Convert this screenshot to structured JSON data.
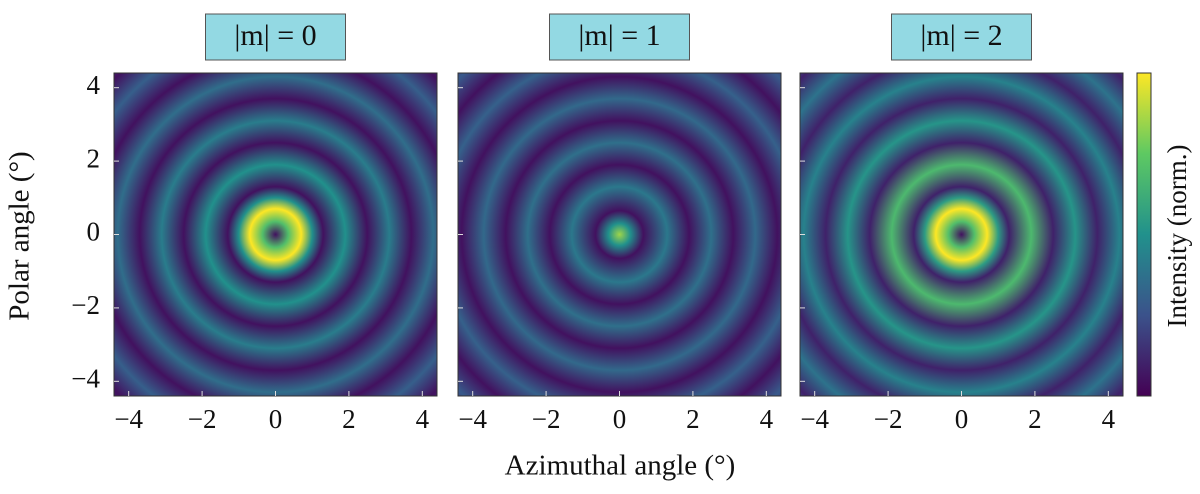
{
  "chart_data": {
    "type": "heatmap",
    "xlabel": "Azimuthal angle (°)",
    "ylabel": "Polar angle (°)",
    "colorbar_label": "Intensity (norm.)",
    "colormap": "viridis",
    "clim": [
      0,
      1
    ],
    "title_box_color": "#93d9e3",
    "xlim": [
      -4.4,
      4.4
    ],
    "ylim": [
      -4.4,
      4.4
    ],
    "xticks": [
      {
        "value": -4,
        "label": "−4"
      },
      {
        "value": -2,
        "label": "−2"
      },
      0,
      2,
      4
    ],
    "yticks": [
      {
        "value": -4,
        "label": "−4"
      },
      {
        "value": -2,
        "label": "−2"
      },
      0,
      2,
      4
    ],
    "panels": [
      {
        "title": "|m| = 0",
        "r": [
          0,
          0.35,
          0.7,
          1.0,
          1.3,
          1.9,
          2.5,
          3.1,
          3.7,
          4.3,
          4.9,
          5.5,
          6.1,
          6.3
        ],
        "values": [
          0.05,
          0.7,
          1.0,
          0.5,
          0.05,
          0.5,
          0.05,
          0.42,
          0.05,
          0.36,
          0.05,
          0.3,
          0.05,
          0.1
        ]
      },
      {
        "title": "|m| = 1",
        "r": [
          0,
          0.3,
          0.65,
          1.3,
          1.9,
          2.5,
          3.1,
          3.7,
          4.3,
          4.9,
          5.5,
          6.1,
          6.3
        ],
        "values": [
          0.85,
          0.5,
          0.05,
          0.4,
          0.05,
          0.37,
          0.05,
          0.34,
          0.05,
          0.31,
          0.05,
          0.28,
          0.2
        ]
      },
      {
        "title": "|m| = 2",
        "r": [
          0,
          0.35,
          0.7,
          1.0,
          1.3,
          1.9,
          2.5,
          3.1,
          3.7,
          4.3,
          4.9,
          5.5,
          6.1,
          6.3
        ],
        "values": [
          0.05,
          0.7,
          1.0,
          0.55,
          0.1,
          0.68,
          0.1,
          0.52,
          0.1,
          0.44,
          0.1,
          0.38,
          0.1,
          0.2
        ]
      }
    ]
  }
}
